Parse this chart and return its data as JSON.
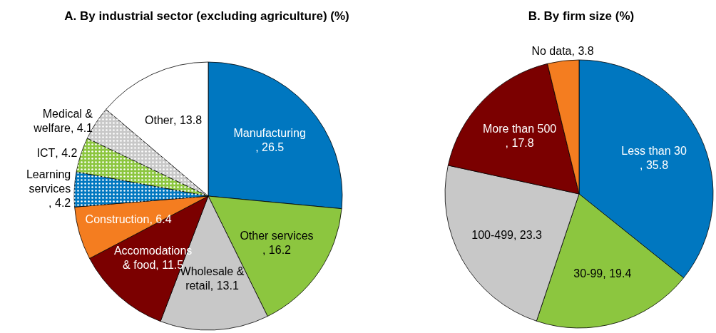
{
  "chart_data": [
    {
      "type": "pie",
      "title": "A. By industrial sector (excluding agriculture) (%)",
      "categories": [
        "Manufacturing",
        "Other services",
        "Wholesale & retail",
        "Accomodations & food",
        "Construction",
        "Learning services",
        "ICT",
        "Medical & welfare",
        "Other"
      ],
      "values": [
        26.5,
        16.2,
        13.1,
        11.5,
        6.4,
        4.2,
        4.2,
        4.1,
        13.8
      ],
      "colors": [
        "#0077c0",
        "#8cc63f",
        "#c8c8c8",
        "#7b0000",
        "#f47d20",
        "#0077c0",
        "#8cc63f",
        "#c8c8c8",
        "#ffffff"
      ],
      "value_labels": [
        ", 26.5",
        ", 16.2",
        ", 13.1",
        ", 11.5",
        ", 6.4",
        ", 4.2",
        ", 4.2",
        ", 4.1",
        ", 13.8"
      ]
    },
    {
      "type": "pie",
      "title": "B. By firm size (%)",
      "categories": [
        "Less than 30",
        "30-99",
        "100-499",
        "More than 500",
        "No data"
      ],
      "values": [
        35.8,
        19.4,
        23.3,
        17.8,
        3.8
      ],
      "colors": [
        "#0077c0",
        "#8cc63f",
        "#c8c8c8",
        "#7b0000",
        "#f47d20"
      ],
      "value_labels": [
        ", 35.8",
        ", 19.4",
        ", 23.3",
        ", 17.8",
        ", 3.8"
      ]
    }
  ]
}
